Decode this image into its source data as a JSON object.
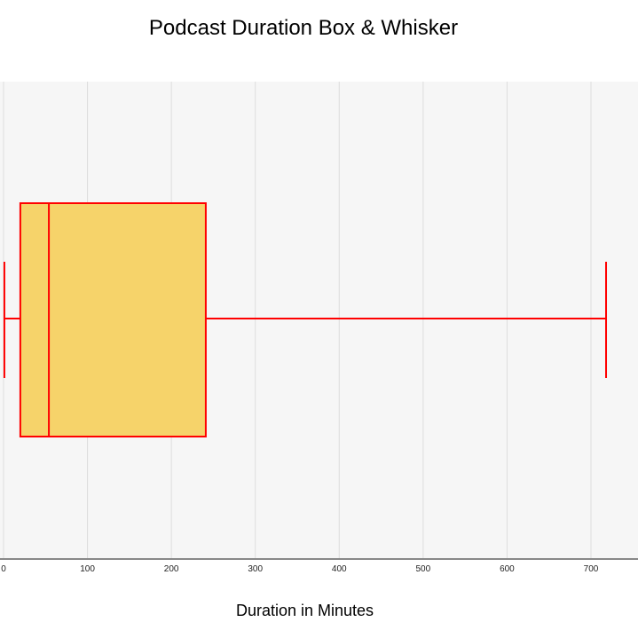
{
  "chart_data": {
    "type": "box",
    "title": "Podcast Duration Box & Whisker",
    "xlabel": "Duration in Minutes",
    "ylabel": "",
    "orientation": "horizontal",
    "xlim": [
      0,
      750
    ],
    "x_ticks": [
      0,
      100,
      200,
      300,
      400,
      500,
      600,
      700
    ],
    "x_tick_labels": [
      "0",
      "100",
      "200",
      "300",
      "400",
      "500",
      "600",
      "700"
    ],
    "grid": true,
    "box": {
      "min": 1,
      "q1": 20,
      "median": 54,
      "q3": 241,
      "max": 718
    },
    "colors": {
      "box_fill": "#F6D36A",
      "box_stroke": "#FF0000",
      "plot_background": "#F6F6F6",
      "grid": "#DDDDDD",
      "axis": "#888888"
    }
  }
}
